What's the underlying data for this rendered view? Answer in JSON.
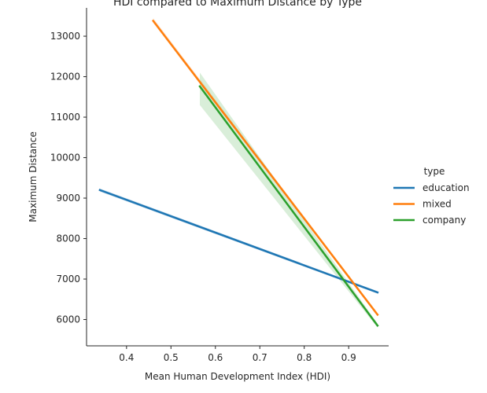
{
  "chart_data": {
    "type": "line",
    "title": "HDI compared to Maximum Distance by Type",
    "xlabel": "Mean Human Development Index (HDI)",
    "ylabel": "Maximum Distance",
    "xlim": [
      0.31,
      0.99
    ],
    "ylim": [
      5350,
      13700
    ],
    "xticks": [
      0.4,
      0.5,
      0.6,
      0.7,
      0.8,
      0.9
    ],
    "yticks": [
      6000,
      7000,
      8000,
      9000,
      10000,
      11000,
      12000,
      13000
    ],
    "grid": false,
    "legend": {
      "title": "type",
      "placement": "right"
    },
    "series": [
      {
        "name": "education",
        "color": "#1f77b4",
        "x": [
          0.34,
          0.965
        ],
        "y": [
          9200,
          6670
        ],
        "ci_lower": [
          9160,
          6640
        ],
        "ci_upper": [
          9240,
          6700
        ]
      },
      {
        "name": "mixed",
        "color": "#ff7f0e",
        "x": [
          0.46,
          0.965
        ],
        "y": [
          13380,
          6120
        ],
        "ci_lower": [
          13330,
          6080
        ],
        "ci_upper": [
          13450,
          6160
        ]
      },
      {
        "name": "company",
        "color": "#2ca02c",
        "x": [
          0.565,
          0.965
        ],
        "y": [
          11760,
          5850
        ],
        "ci_lower": [
          11300,
          5800
        ],
        "ci_upper": [
          12100,
          5900
        ]
      }
    ]
  }
}
